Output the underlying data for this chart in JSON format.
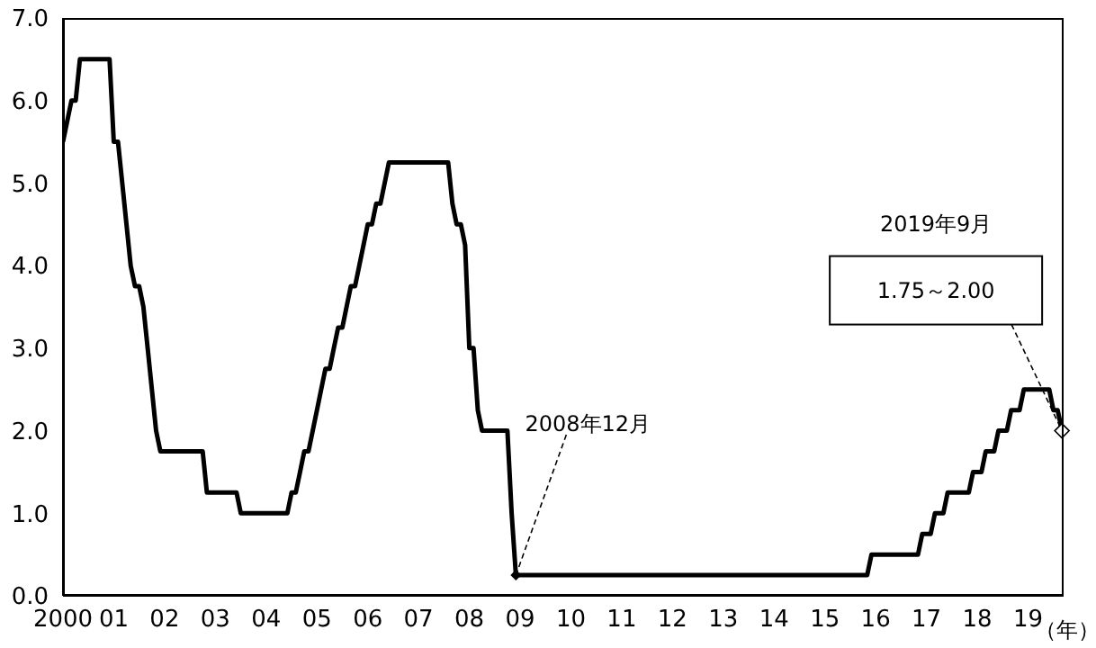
{
  "chart_data": {
    "type": "line",
    "xlabel": "（年）",
    "x": [
      2000,
      2000.083,
      2000.167,
      2000.25,
      2000.333,
      2000.917,
      2001.0,
      2001.083,
      2001.167,
      2001.25,
      2001.333,
      2001.417,
      2001.5,
      2001.583,
      2001.667,
      2001.75,
      2001.833,
      2001.917,
      2002.75,
      2002.833,
      2003.417,
      2003.5,
      2004.417,
      2004.5,
      2004.583,
      2004.667,
      2004.75,
      2004.833,
      2004.917,
      2005.0,
      2005.083,
      2005.167,
      2005.25,
      2005.333,
      2005.417,
      2005.5,
      2005.583,
      2005.667,
      2005.75,
      2005.833,
      2005.917,
      2006.0,
      2006.083,
      2006.167,
      2006.25,
      2006.333,
      2006.417,
      2007.583,
      2007.667,
      2007.75,
      2007.833,
      2007.917,
      2008.0,
      2008.083,
      2008.167,
      2008.25,
      2008.75,
      2008.833,
      2008.917,
      2015.833,
      2015.917,
      2016.833,
      2016.917,
      2017.083,
      2017.167,
      2017.333,
      2017.417,
      2017.833,
      2017.917,
      2018.083,
      2018.167,
      2018.333,
      2018.417,
      2018.583,
      2018.667,
      2018.833,
      2018.917,
      2019.417,
      2019.5,
      2019.583,
      2019.667
    ],
    "series": [
      {
        "color": "#000000",
        "values": [
          5.5,
          5.75,
          6.0,
          6.0,
          6.5,
          6.5,
          5.5,
          5.5,
          5.0,
          4.5,
          4.0,
          3.75,
          3.75,
          3.5,
          3.0,
          2.5,
          2.0,
          1.75,
          1.75,
          1.25,
          1.25,
          1.0,
          1.0,
          1.25,
          1.25,
          1.5,
          1.75,
          1.75,
          2.0,
          2.25,
          2.5,
          2.75,
          2.75,
          3.0,
          3.25,
          3.25,
          3.5,
          3.75,
          3.75,
          4.0,
          4.25,
          4.5,
          4.5,
          4.75,
          4.75,
          5.0,
          5.25,
          5.25,
          4.75,
          4.5,
          4.5,
          4.25,
          3.0,
          3.0,
          2.25,
          2.0,
          2.0,
          1.0,
          0.25,
          0.25,
          0.5,
          0.5,
          0.75,
          0.75,
          1.0,
          1.0,
          1.25,
          1.25,
          1.5,
          1.5,
          1.75,
          1.75,
          2.0,
          2.0,
          2.25,
          2.25,
          2.5,
          2.5,
          2.25,
          2.25,
          2.0
        ]
      }
    ],
    "xlim": [
      2000,
      2019.7
    ],
    "xticks": [
      {
        "value": 2000,
        "label": "2000"
      },
      {
        "value": 2001,
        "label": "01"
      },
      {
        "value": 2002,
        "label": "02"
      },
      {
        "value": 2003,
        "label": "03"
      },
      {
        "value": 2004,
        "label": "04"
      },
      {
        "value": 2005,
        "label": "05"
      },
      {
        "value": 2006,
        "label": "06"
      },
      {
        "value": 2007,
        "label": "07"
      },
      {
        "value": 2008,
        "label": "08"
      },
      {
        "value": 2009,
        "label": "09"
      },
      {
        "value": 2010,
        "label": "10"
      },
      {
        "value": 2011,
        "label": "11"
      },
      {
        "value": 2012,
        "label": "12"
      },
      {
        "value": 2013,
        "label": "13"
      },
      {
        "value": 2014,
        "label": "14"
      },
      {
        "value": 2015,
        "label": "15"
      },
      {
        "value": 2016,
        "label": "16"
      },
      {
        "value": 2017,
        "label": "17"
      },
      {
        "value": 2018,
        "label": "18"
      },
      {
        "value": 2019,
        "label": "19"
      }
    ],
    "ylim": [
      0,
      7
    ],
    "yticks": [
      {
        "value": 0,
        "label": "0.0"
      },
      {
        "value": 1,
        "label": "1.0"
      },
      {
        "value": 2,
        "label": "2.0"
      },
      {
        "value": 3,
        "label": "3.0"
      },
      {
        "value": 4,
        "label": "4.0"
      },
      {
        "value": 5,
        "label": "5.0"
      },
      {
        "value": 6,
        "label": "6.0"
      },
      {
        "value": 7,
        "label": "7.0"
      }
    ],
    "grid": false,
    "marker": "none",
    "line_style": "solid",
    "annotations": [
      {
        "text": "2008年12月",
        "x": 2008.917,
        "y": 0.25
      },
      {
        "text": "1.75～2.00",
        "x": 2019.667,
        "y": 2.0
      },
      "2019年9月"
    ]
  }
}
